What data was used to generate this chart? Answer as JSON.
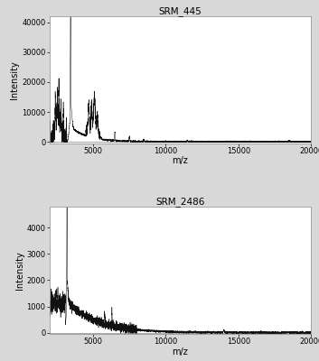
{
  "plot1_title": "SRM_445",
  "plot2_title": "SRM_2486",
  "xlabel": "m/z",
  "ylabel": "Intensity",
  "xlim": [
    2000,
    20000
  ],
  "plot1_ylim": [
    -500,
    42000
  ],
  "plot2_ylim": [
    -50,
    4800
  ],
  "plot1_yticks": [
    0,
    10000,
    20000,
    30000,
    40000
  ],
  "plot2_yticks": [
    0,
    1000,
    2000,
    3000,
    4000
  ],
  "xticks": [
    5000,
    10000,
    15000,
    20000
  ],
  "bg_color": "#d8d8d8",
  "plot_bg": "#ffffff",
  "line_color": "#111111",
  "title_fontsize": 7.5,
  "label_fontsize": 7,
  "tick_fontsize": 6,
  "spine_color": "#999999"
}
